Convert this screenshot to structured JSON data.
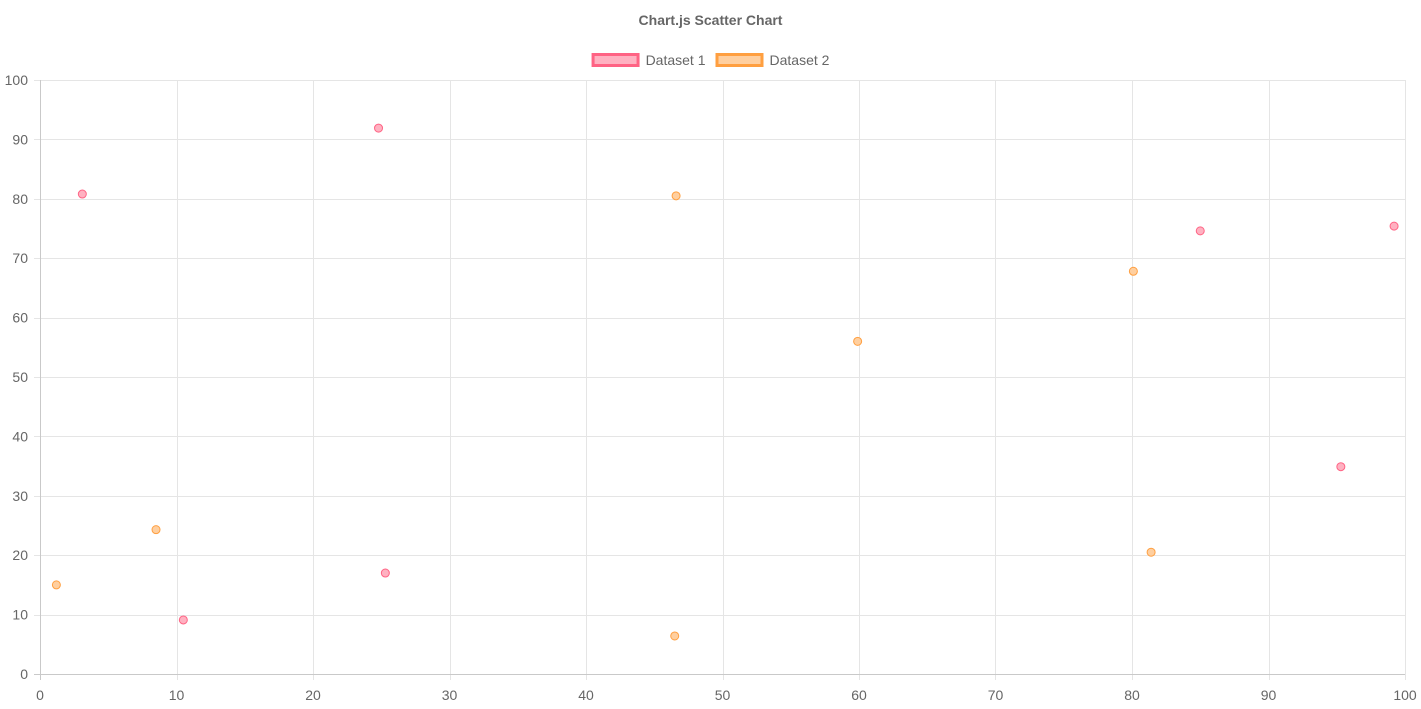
{
  "chart_data": {
    "type": "scatter",
    "title": "Chart.js Scatter Chart",
    "legend_position": "top-center",
    "grid": true,
    "xlim": [
      0,
      100
    ],
    "ylim": [
      0,
      100
    ],
    "x_ticks": [
      0,
      10,
      20,
      30,
      40,
      50,
      60,
      70,
      80,
      90,
      100
    ],
    "y_ticks": [
      0,
      10,
      20,
      30,
      40,
      50,
      60,
      70,
      80,
      90,
      100
    ],
    "xlabel": "",
    "ylabel": "",
    "series": [
      {
        "name": "Dataset 1",
        "border_color": "#ff6384",
        "fill_color": "#ffb1c1",
        "points": [
          {
            "x": 3.1,
            "y": 80.8
          },
          {
            "x": 24.8,
            "y": 91.9
          },
          {
            "x": 10.5,
            "y": 9.1
          },
          {
            "x": 25.3,
            "y": 17.0
          },
          {
            "x": 85.0,
            "y": 74.6
          },
          {
            "x": 99.2,
            "y": 75.4
          },
          {
            "x": 95.3,
            "y": 34.9
          }
        ]
      },
      {
        "name": "Dataset 2",
        "border_color": "#ff9f40",
        "fill_color": "#ffcf9f",
        "points": [
          {
            "x": 1.2,
            "y": 15.0
          },
          {
            "x": 8.5,
            "y": 24.3
          },
          {
            "x": 46.6,
            "y": 80.5
          },
          {
            "x": 46.5,
            "y": 6.4
          },
          {
            "x": 59.9,
            "y": 56.0
          },
          {
            "x": 80.1,
            "y": 67.8
          },
          {
            "x": 81.4,
            "y": 20.5
          }
        ]
      }
    ]
  }
}
